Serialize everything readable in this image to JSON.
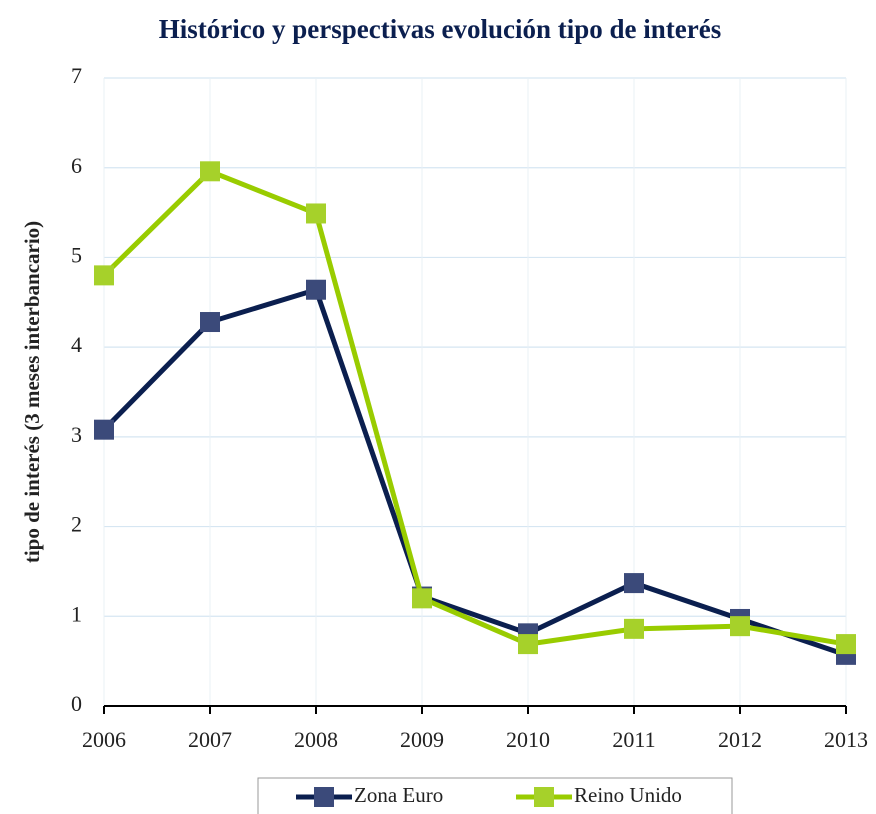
{
  "chart_data": {
    "type": "line",
    "title": "Histórico y perspectivas evolución tipo de interés",
    "y_label": "tipo de interés (3 meses interbancario)",
    "x": [
      2006,
      2007,
      2008,
      2009,
      2010,
      2011,
      2012,
      2013
    ],
    "xlim": [
      2006,
      2013
    ],
    "xticks": [
      2006,
      2007,
      2008,
      2009,
      2010,
      2011,
      2012,
      2013
    ],
    "ylim": [
      0,
      7
    ],
    "yticks": [
      0,
      1,
      2,
      3,
      4,
      5,
      6,
      7
    ],
    "grid": true,
    "legend": "bottom",
    "series": [
      {
        "name": "Zona Euro",
        "color": "#0b1f4f",
        "marker_color": "#3b4a7a",
        "values": [
          3.08,
          4.28,
          4.64,
          1.22,
          0.81,
          1.37,
          0.97,
          0.57
        ]
      },
      {
        "name": "Reino Unido",
        "color": "#99cc00",
        "marker_color": "#a6d12a",
        "values": [
          4.8,
          5.96,
          5.49,
          1.2,
          0.69,
          0.86,
          0.89,
          0.69
        ]
      }
    ]
  }
}
